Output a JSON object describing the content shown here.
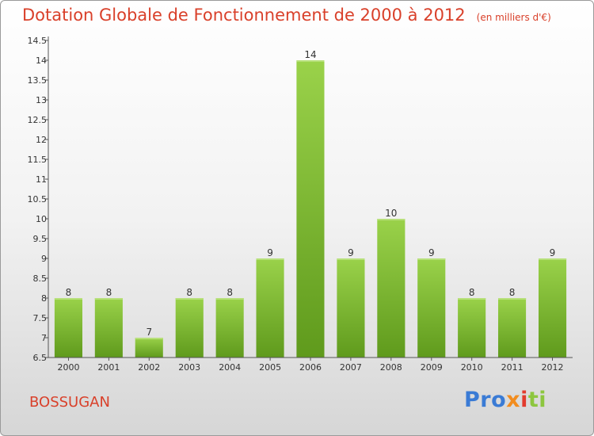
{
  "chart_data": {
    "type": "bar",
    "title": "Dotation Globale de Fonctionnement de 2000 à 2012",
    "subtitle": "(en milliers d'€)",
    "categories": [
      "2000",
      "2001",
      "2002",
      "2003",
      "2004",
      "2005",
      "2006",
      "2007",
      "2008",
      "2009",
      "2010",
      "2011",
      "2012"
    ],
    "values": [
      8,
      8,
      7,
      8,
      8,
      9,
      14,
      9,
      10,
      9,
      8,
      8,
      9
    ],
    "value_labels": [
      "8",
      "8",
      "7",
      "8",
      "8",
      "9",
      "14",
      "9",
      "10",
      "9",
      "8",
      "8",
      "9"
    ],
    "ylim": [
      6.5,
      14.5
    ],
    "yticks": [
      "6.5",
      "7",
      "7.5",
      "8",
      "8.5",
      "9",
      "9.5",
      "10",
      "10.5",
      "11",
      "11.5",
      "12",
      "12.5",
      "13",
      "13.5",
      "14",
      "14.5"
    ],
    "grid": false,
    "bar_color": "#7dbe2e",
    "bar_color_light": "#9ad24a",
    "bar_color_dark": "#5f9a1c"
  },
  "footer": {
    "commune": "BOSSUGAN",
    "logo_text": "Proxiti"
  },
  "colors": {
    "title": "#d9402a"
  }
}
